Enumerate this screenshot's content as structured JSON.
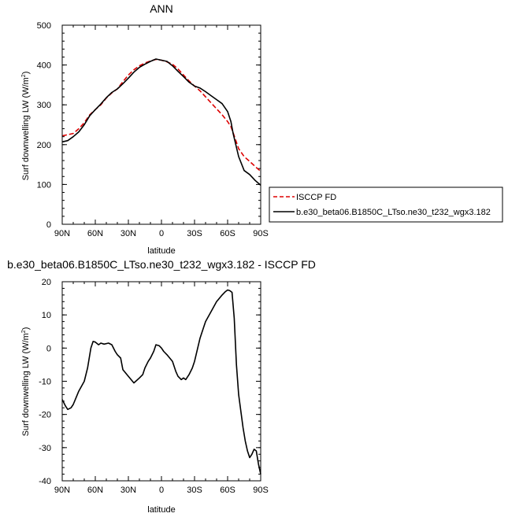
{
  "chart_data": [
    {
      "type": "line",
      "title": "ANN",
      "xlabel": "latitude",
      "ylabel": "Surf downwelling LW (W/m",
      "ylabel_sup": "2",
      "ylabel_close": ")",
      "xlim": [
        90,
        -90
      ],
      "ylim": [
        0,
        500
      ],
      "x_ticks": [
        90,
        60,
        30,
        0,
        -30,
        -60,
        -90
      ],
      "x_tick_labels": [
        "90N",
        "60N",
        "30N",
        "0",
        "30S",
        "60S",
        "90S"
      ],
      "y_ticks": [
        0,
        100,
        200,
        300,
        400,
        500
      ],
      "y_tick_labels": [
        "0",
        "100",
        "200",
        "300",
        "400",
        "500"
      ],
      "legend_placement": "right of plot, lower",
      "series": [
        {
          "name": "ISCCP FD",
          "color": "#dd0000",
          "dash": "dashed",
          "x": [
            90,
            80,
            75,
            70,
            65,
            60,
            55,
            50,
            45,
            40,
            35,
            30,
            25,
            20,
            15,
            10,
            5,
            0,
            -5,
            -10,
            -15,
            -20,
            -25,
            -30,
            -35,
            -40,
            -45,
            -50,
            -55,
            -60,
            -63,
            -65,
            -70,
            -75,
            -80,
            -85,
            -90
          ],
          "y": [
            222,
            228,
            240,
            255,
            275,
            288,
            300,
            317,
            330,
            340,
            358,
            375,
            388,
            398,
            405,
            410,
            414,
            412,
            408,
            402,
            390,
            375,
            360,
            347,
            335,
            320,
            305,
            290,
            275,
            258,
            245,
            230,
            190,
            170,
            158,
            145,
            133
          ]
        },
        {
          "name": "b.e30_beta06.B1850C_LTso.ne30_t232_wgx3.182",
          "color": "#000000",
          "dash": "solid",
          "x": [
            90,
            85,
            80,
            75,
            70,
            65,
            60,
            55,
            50,
            45,
            40,
            35,
            30,
            25,
            20,
            15,
            10,
            5,
            0,
            -5,
            -10,
            -15,
            -20,
            -25,
            -30,
            -35,
            -40,
            -45,
            -50,
            -55,
            -60,
            -63,
            -65,
            -70,
            -75,
            -80,
            -85,
            -90
          ],
          "y": [
            207,
            210,
            220,
            232,
            250,
            273,
            288,
            302,
            318,
            331,
            340,
            353,
            367,
            382,
            394,
            402,
            409,
            415,
            412,
            409,
            398,
            384,
            371,
            357,
            347,
            342,
            333,
            323,
            313,
            303,
            283,
            258,
            228,
            170,
            135,
            125,
            110,
            98
          ]
        }
      ]
    },
    {
      "type": "line",
      "title": "b.e30_beta06.B1850C_LTso.ne30_t232_wgx3.182 - ISCCP FD",
      "xlabel": "latitude",
      "ylabel": "Surf downwelling LW (W/m",
      "ylabel_sup": "2",
      "ylabel_close": ")",
      "xlim": [
        90,
        -90
      ],
      "ylim": [
        -40,
        20
      ],
      "x_ticks": [
        90,
        60,
        30,
        0,
        -30,
        -60,
        -90
      ],
      "x_tick_labels": [
        "90N",
        "60N",
        "30N",
        "0",
        "30S",
        "60S",
        "90S"
      ],
      "y_ticks": [
        -40,
        -30,
        -20,
        -10,
        0,
        10,
        20
      ],
      "y_tick_labels": [
        "-40",
        "-30",
        "-20",
        "-10",
        "0",
        "10",
        "20"
      ],
      "series": [
        {
          "color": "#000000",
          "dash": "solid",
          "x": [
            90,
            87,
            85,
            82,
            80,
            75,
            70,
            67,
            64,
            62,
            60,
            57,
            55,
            52,
            48,
            45,
            42,
            40,
            37,
            35,
            30,
            25,
            20,
            17,
            15,
            12,
            10,
            7,
            5,
            2,
            0,
            -2,
            -5,
            -10,
            -13,
            -15,
            -18,
            -20,
            -22,
            -25,
            -28,
            -30,
            -35,
            -38,
            -40,
            -45,
            -50,
            -55,
            -58,
            -60,
            -62,
            -64,
            -66,
            -68,
            -70,
            -72,
            -74,
            -76,
            -78,
            -80,
            -82,
            -84,
            -86,
            -88,
            -90
          ],
          "y": [
            -15.5,
            -17.5,
            -18.5,
            -18,
            -17,
            -13,
            -10,
            -6,
            0,
            2,
            1.8,
            1,
            1.5,
            1.2,
            1.5,
            1,
            -1,
            -2,
            -3,
            -6.5,
            -8.5,
            -10.5,
            -9,
            -8,
            -6,
            -4,
            -3,
            -1,
            1,
            0.7,
            0,
            -1,
            -2,
            -4,
            -7,
            -8.5,
            -9.5,
            -9,
            -9.5,
            -8,
            -6,
            -4,
            3,
            6,
            8,
            11,
            14,
            16,
            17,
            17.5,
            17.3,
            16.8,
            9,
            -5,
            -14,
            -19,
            -24,
            -28,
            -31,
            -33,
            -32,
            -30.5,
            -31,
            -35,
            -38
          ]
        }
      ]
    }
  ],
  "legend": {
    "items": [
      {
        "label": "ISCCP FD",
        "color": "#dd0000",
        "dash": "dashed"
      },
      {
        "label": "b.e30_beta06.B1850C_LTso.ne30_t232_wgx3.182",
        "color": "#000000",
        "dash": "solid"
      }
    ]
  }
}
